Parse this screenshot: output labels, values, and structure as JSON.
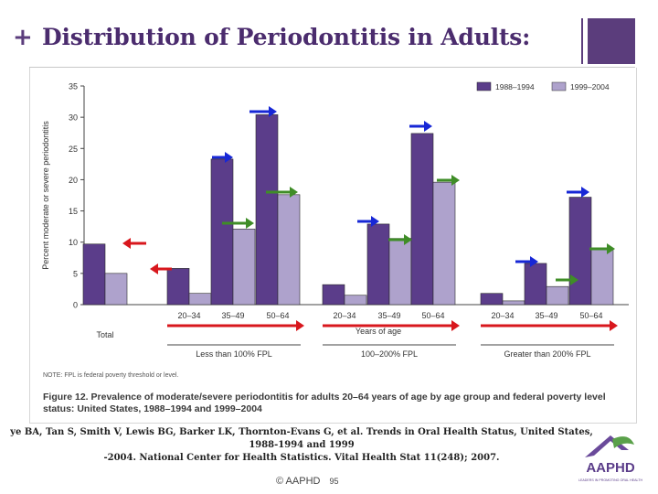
{
  "slide": {
    "plus_symbol": "+",
    "title": "Distribution of Periodontitis in Adults:",
    "citation_line1": "ye BA, Tan S, Smith V, Lewis BG, Barker LK, Thornton-Evans G, et al. Trends in Oral Health Status, United States, 1988-1994 and 1999",
    "citation_line2": "-2004. National Center for Health Statistics. Vital Health Stat 11(248); 2007.",
    "footer_copyright": "© AAPHD",
    "page_number": "95",
    "logo_text": "AAPHD",
    "logo_tagline": "LEADERS IN PROMOTING ORAL HEALTH",
    "colors": {
      "title": "#4b2c6e",
      "accent_square": "#5b3d7c"
    }
  },
  "figure": {
    "note": "NOTE: FPL is federal poverty threshold or level.",
    "caption": "Figure 12. Prevalence of moderate/severe periodontitis for adults 20–64 years of age by age group and federal poverty level status: United States, 1988–1994 and 1999–2004"
  },
  "chart_data": {
    "type": "bar",
    "ylabel": "Percent moderate or severe periodontitis",
    "xlabel": "Years of age",
    "ylim": [
      0,
      35
    ],
    "yticks": [
      "0",
      "5",
      "10",
      "15",
      "20",
      "25",
      "30",
      "35"
    ],
    "grid": false,
    "legend_position": "top-right",
    "categories": [
      "Total",
      "20–34",
      "35–49",
      "50–64",
      "20–34",
      "35–49",
      "50–64",
      "20–34",
      "35–49",
      "50–64"
    ],
    "groups": [
      {
        "label": "Less than 100% FPL",
        "categories": [
          "20–34",
          "35–49",
          "50–64"
        ]
      },
      {
        "label": "100–200% FPL",
        "categories": [
          "20–34",
          "35–49",
          "50–64"
        ]
      },
      {
        "label": "Greater than 200% FPL",
        "categories": [
          "20–34",
          "35–49",
          "50–64"
        ]
      }
    ],
    "series": [
      {
        "name": "1988–1994",
        "color": "#5b3d8a",
        "values": [
          9.7,
          5.8,
          23.3,
          30.4,
          3.2,
          12.9,
          27.4,
          1.8,
          6.6,
          17.2
        ]
      },
      {
        "name": "1999–2004",
        "color": "#aea2cc",
        "values": [
          5.0,
          1.8,
          12.1,
          17.6,
          1.5,
          10.6,
          19.6,
          0.6,
          2.9,
          9.0
        ]
      }
    ],
    "annotations": {
      "red_arrows": [
        "decrease-total",
        "decrease-20-34-less-than-100-fpl",
        "age-direction-less-than-100-fpl",
        "age-direction-100-200-fpl",
        "age-direction-greater-than-200-fpl"
      ],
      "blue_arrows_on_series": "1988–1994",
      "green_arrows_on_series": "1999–2004",
      "colors": {
        "red": "#d8171d",
        "blue": "#1727d6",
        "green": "#3f8d27"
      }
    }
  }
}
